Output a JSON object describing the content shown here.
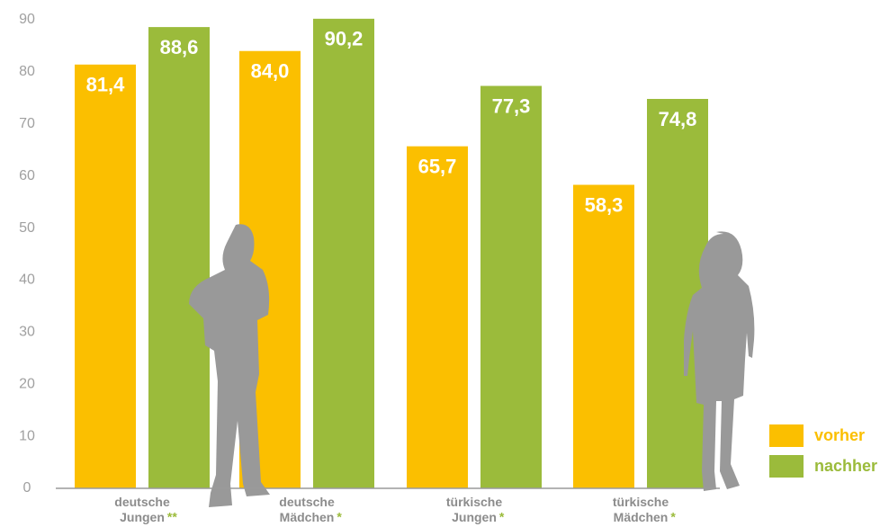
{
  "chart_data": {
    "type": "bar",
    "categories": [
      "deutsche Jungen",
      "deutsche Mädchen",
      "türkische Jungen",
      "türkische Mädchen"
    ],
    "significance": [
      "**",
      "*",
      "*",
      "*"
    ],
    "series": [
      {
        "name": "vorher",
        "color": "#fbbf00",
        "values": [
          81.4,
          84.0,
          65.7,
          58.3
        ],
        "value_labels": [
          "81,4",
          "84,0",
          "65,7",
          "58,3"
        ]
      },
      {
        "name": "nachher",
        "color": "#9bbb3b",
        "values": [
          88.6,
          90.2,
          77.3,
          74.8
        ],
        "value_labels": [
          "88,6",
          "90,2",
          "77,3",
          "74,8"
        ]
      }
    ],
    "ylim": [
      0,
      90
    ],
    "yticks": [
      0,
      10,
      20,
      30,
      40,
      50,
      60,
      70,
      80,
      90
    ],
    "grid": false,
    "legend": "lower right"
  }
}
